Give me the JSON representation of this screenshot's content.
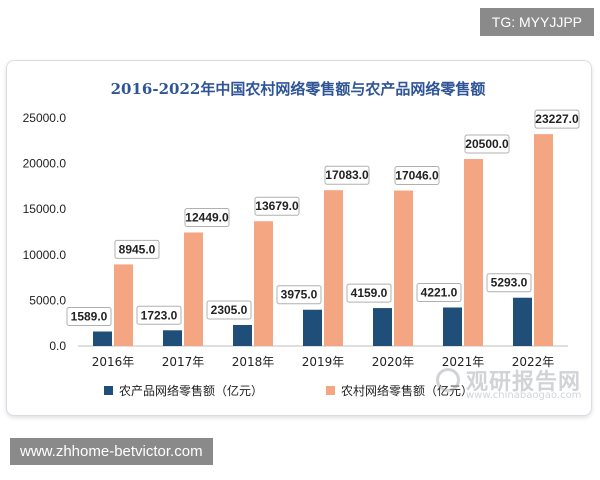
{
  "badges": {
    "tg": "TG: MYYJJPP",
    "url": "www.zhhome-betvictor.com"
  },
  "watermark": {
    "name": "观研报告网",
    "domain": "www.chinabaogao.com"
  },
  "chart_data": {
    "type": "bar",
    "title": "2016-2022年中国农村网络零售额与农产品网络零售额",
    "categories": [
      "2016年",
      "2017年",
      "2018年",
      "2019年",
      "2020年",
      "2021年",
      "2022年"
    ],
    "series": [
      {
        "name": "农产品网络零售额（亿元）",
        "color": "#1f4e79",
        "values": [
          1589.0,
          1723.0,
          2305.0,
          3975.0,
          4159.0,
          4221.0,
          5293.0
        ],
        "labels": [
          "1589.0",
          "1723.0",
          "2305.0",
          "3975.0",
          "4159.0",
          "4221.0",
          "5293.0"
        ]
      },
      {
        "name": "农村网络零售额（亿元）",
        "color": "#f4a582",
        "values": [
          8945.0,
          12449.0,
          13679.0,
          17083.0,
          17046.0,
          20500.0,
          23227.0
        ],
        "labels": [
          "8945.0",
          "12449.0",
          "13679.0",
          "17083.0",
          "17046.0",
          "20500.0",
          "23227.0"
        ]
      }
    ],
    "ylim": [
      0,
      25000
    ],
    "yticks": [
      0,
      5000,
      10000,
      15000,
      20000,
      25000
    ],
    "ytick_labels": [
      "0.0",
      "5000.0",
      "10000.0",
      "15000.0",
      "20000.0",
      "25000.0"
    ],
    "grid": false,
    "legend": "bottom"
  }
}
